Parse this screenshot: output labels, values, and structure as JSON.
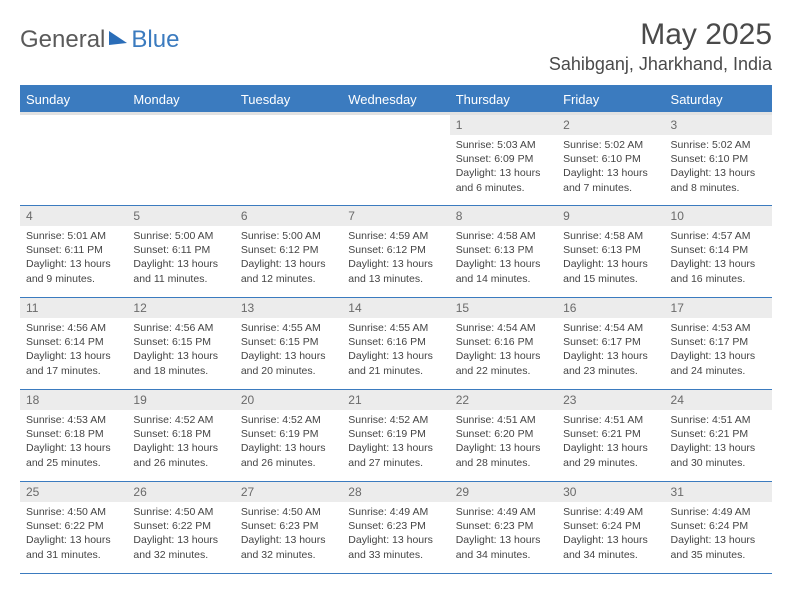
{
  "logo": {
    "part1": "General",
    "part2": "Blue"
  },
  "title": "May 2025",
  "location": "Sahibganj, Jharkhand, India",
  "colors": {
    "header_bg": "#3b7bbf",
    "header_text": "#ffffff",
    "daynum_bg": "#ececec",
    "border": "#3b7bbf",
    "text": "#333333"
  },
  "weekdays": [
    "Sunday",
    "Monday",
    "Tuesday",
    "Wednesday",
    "Thursday",
    "Friday",
    "Saturday"
  ],
  "weeks": [
    [
      {
        "blank": true
      },
      {
        "blank": true
      },
      {
        "blank": true
      },
      {
        "blank": true
      },
      {
        "day": "1",
        "sunrise": "Sunrise: 5:03 AM",
        "sunset": "Sunset: 6:09 PM",
        "daylight": "Daylight: 13 hours and 6 minutes."
      },
      {
        "day": "2",
        "sunrise": "Sunrise: 5:02 AM",
        "sunset": "Sunset: 6:10 PM",
        "daylight": "Daylight: 13 hours and 7 minutes."
      },
      {
        "day": "3",
        "sunrise": "Sunrise: 5:02 AM",
        "sunset": "Sunset: 6:10 PM",
        "daylight": "Daylight: 13 hours and 8 minutes."
      }
    ],
    [
      {
        "day": "4",
        "sunrise": "Sunrise: 5:01 AM",
        "sunset": "Sunset: 6:11 PM",
        "daylight": "Daylight: 13 hours and 9 minutes."
      },
      {
        "day": "5",
        "sunrise": "Sunrise: 5:00 AM",
        "sunset": "Sunset: 6:11 PM",
        "daylight": "Daylight: 13 hours and 11 minutes."
      },
      {
        "day": "6",
        "sunrise": "Sunrise: 5:00 AM",
        "sunset": "Sunset: 6:12 PM",
        "daylight": "Daylight: 13 hours and 12 minutes."
      },
      {
        "day": "7",
        "sunrise": "Sunrise: 4:59 AM",
        "sunset": "Sunset: 6:12 PM",
        "daylight": "Daylight: 13 hours and 13 minutes."
      },
      {
        "day": "8",
        "sunrise": "Sunrise: 4:58 AM",
        "sunset": "Sunset: 6:13 PM",
        "daylight": "Daylight: 13 hours and 14 minutes."
      },
      {
        "day": "9",
        "sunrise": "Sunrise: 4:58 AM",
        "sunset": "Sunset: 6:13 PM",
        "daylight": "Daylight: 13 hours and 15 minutes."
      },
      {
        "day": "10",
        "sunrise": "Sunrise: 4:57 AM",
        "sunset": "Sunset: 6:14 PM",
        "daylight": "Daylight: 13 hours and 16 minutes."
      }
    ],
    [
      {
        "day": "11",
        "sunrise": "Sunrise: 4:56 AM",
        "sunset": "Sunset: 6:14 PM",
        "daylight": "Daylight: 13 hours and 17 minutes."
      },
      {
        "day": "12",
        "sunrise": "Sunrise: 4:56 AM",
        "sunset": "Sunset: 6:15 PM",
        "daylight": "Daylight: 13 hours and 18 minutes."
      },
      {
        "day": "13",
        "sunrise": "Sunrise: 4:55 AM",
        "sunset": "Sunset: 6:15 PM",
        "daylight": "Daylight: 13 hours and 20 minutes."
      },
      {
        "day": "14",
        "sunrise": "Sunrise: 4:55 AM",
        "sunset": "Sunset: 6:16 PM",
        "daylight": "Daylight: 13 hours and 21 minutes."
      },
      {
        "day": "15",
        "sunrise": "Sunrise: 4:54 AM",
        "sunset": "Sunset: 6:16 PM",
        "daylight": "Daylight: 13 hours and 22 minutes."
      },
      {
        "day": "16",
        "sunrise": "Sunrise: 4:54 AM",
        "sunset": "Sunset: 6:17 PM",
        "daylight": "Daylight: 13 hours and 23 minutes."
      },
      {
        "day": "17",
        "sunrise": "Sunrise: 4:53 AM",
        "sunset": "Sunset: 6:17 PM",
        "daylight": "Daylight: 13 hours and 24 minutes."
      }
    ],
    [
      {
        "day": "18",
        "sunrise": "Sunrise: 4:53 AM",
        "sunset": "Sunset: 6:18 PM",
        "daylight": "Daylight: 13 hours and 25 minutes."
      },
      {
        "day": "19",
        "sunrise": "Sunrise: 4:52 AM",
        "sunset": "Sunset: 6:18 PM",
        "daylight": "Daylight: 13 hours and 26 minutes."
      },
      {
        "day": "20",
        "sunrise": "Sunrise: 4:52 AM",
        "sunset": "Sunset: 6:19 PM",
        "daylight": "Daylight: 13 hours and 26 minutes."
      },
      {
        "day": "21",
        "sunrise": "Sunrise: 4:52 AM",
        "sunset": "Sunset: 6:19 PM",
        "daylight": "Daylight: 13 hours and 27 minutes."
      },
      {
        "day": "22",
        "sunrise": "Sunrise: 4:51 AM",
        "sunset": "Sunset: 6:20 PM",
        "daylight": "Daylight: 13 hours and 28 minutes."
      },
      {
        "day": "23",
        "sunrise": "Sunrise: 4:51 AM",
        "sunset": "Sunset: 6:21 PM",
        "daylight": "Daylight: 13 hours and 29 minutes."
      },
      {
        "day": "24",
        "sunrise": "Sunrise: 4:51 AM",
        "sunset": "Sunset: 6:21 PM",
        "daylight": "Daylight: 13 hours and 30 minutes."
      }
    ],
    [
      {
        "day": "25",
        "sunrise": "Sunrise: 4:50 AM",
        "sunset": "Sunset: 6:22 PM",
        "daylight": "Daylight: 13 hours and 31 minutes."
      },
      {
        "day": "26",
        "sunrise": "Sunrise: 4:50 AM",
        "sunset": "Sunset: 6:22 PM",
        "daylight": "Daylight: 13 hours and 32 minutes."
      },
      {
        "day": "27",
        "sunrise": "Sunrise: 4:50 AM",
        "sunset": "Sunset: 6:23 PM",
        "daylight": "Daylight: 13 hours and 32 minutes."
      },
      {
        "day": "28",
        "sunrise": "Sunrise: 4:49 AM",
        "sunset": "Sunset: 6:23 PM",
        "daylight": "Daylight: 13 hours and 33 minutes."
      },
      {
        "day": "29",
        "sunrise": "Sunrise: 4:49 AM",
        "sunset": "Sunset: 6:23 PM",
        "daylight": "Daylight: 13 hours and 34 minutes."
      },
      {
        "day": "30",
        "sunrise": "Sunrise: 4:49 AM",
        "sunset": "Sunset: 6:24 PM",
        "daylight": "Daylight: 13 hours and 34 minutes."
      },
      {
        "day": "31",
        "sunrise": "Sunrise: 4:49 AM",
        "sunset": "Sunset: 6:24 PM",
        "daylight": "Daylight: 13 hours and 35 minutes."
      }
    ]
  ]
}
